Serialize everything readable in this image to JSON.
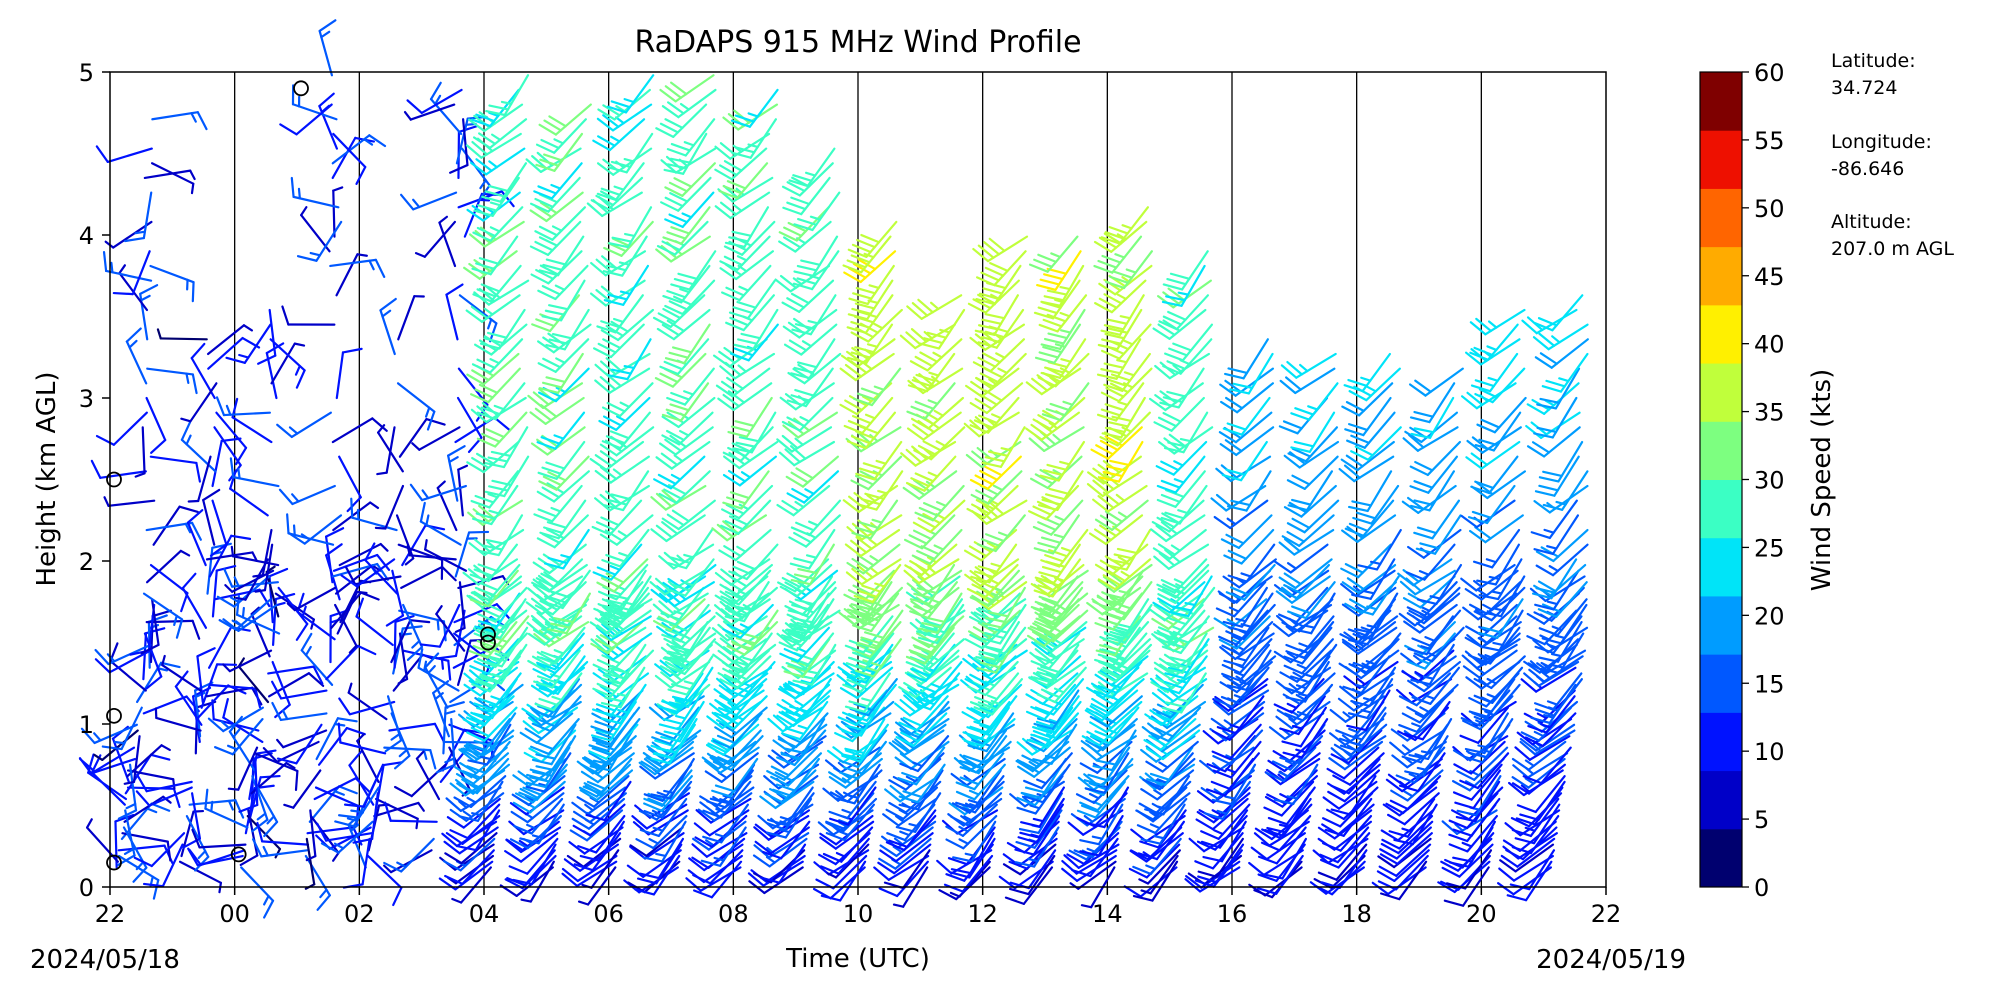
{
  "chart_data": {
    "type": "wind_barbs",
    "title": "RaDAPS 915 MHz Wind Profile",
    "xlabel": "Time (UTC)",
    "ylabel": "Height (km AGL)",
    "x_ticks": [
      "22",
      "00",
      "02",
      "04",
      "06",
      "08",
      "10",
      "12",
      "14",
      "16",
      "18",
      "20",
      "22"
    ],
    "x_start_date": "2024/05/18",
    "x_end_date": "2024/05/19",
    "y_ticks": [
      "0",
      "1",
      "2",
      "3",
      "4",
      "5"
    ],
    "ylim": [
      0,
      5
    ],
    "colorbar": {
      "label": "Wind Speed (kts)",
      "ticks": [
        "0",
        "5",
        "10",
        "15",
        "20",
        "25",
        "30",
        "35",
        "40",
        "45",
        "50",
        "55",
        "60"
      ],
      "range": [
        0,
        60
      ],
      "colors": [
        "#00006f",
        "#0000c8",
        "#0012ff",
        "#0058ff",
        "#009cff",
        "#00e4f8",
        "#3bffc4",
        "#7dff80",
        "#c0ff3b",
        "#fff000",
        "#ffab00",
        "#ff6500",
        "#ee1000",
        "#7f0000"
      ]
    },
    "station_info": {
      "latitude_label": "Latitude:",
      "latitude_value": "34.724",
      "longitude_label": "Longitude:",
      "longitude_value": "-86.646",
      "altitude_label": "Altitude:",
      "altitude_value": "207.0 m AGL"
    },
    "profiles": [
      {
        "hour": "22",
        "top_km": 5.0,
        "calm_heights_km": [
          2.5,
          1.05,
          0.15
        ]
      },
      {
        "hour": "23",
        "top_km": 3.5,
        "calm_heights_km": []
      },
      {
        "hour": "00",
        "top_km": 3.6,
        "calm_heights_km": [
          0.2
        ]
      },
      {
        "hour": "01",
        "top_km": 5.0,
        "calm_heights_km": [
          4.9
        ]
      },
      {
        "hour": "02",
        "top_km": 3.4,
        "calm_heights_km": []
      },
      {
        "hour": "03",
        "top_km": 4.9,
        "calm_heights_km": []
      },
      {
        "hour": "04",
        "top_km": 5.0,
        "calm_heights_km": [
          1.55,
          1.5
        ]
      },
      {
        "hour": "05",
        "top_km": 4.8,
        "calm_heights_km": []
      },
      {
        "hour": "06",
        "top_km": 5.0,
        "calm_heights_km": []
      },
      {
        "hour": "07",
        "top_km": 5.0,
        "calm_heights_km": []
      },
      {
        "hour": "08",
        "top_km": 4.9,
        "calm_heights_km": []
      },
      {
        "hour": "09",
        "top_km": 4.6,
        "calm_heights_km": []
      },
      {
        "hour": "10",
        "top_km": 4.1,
        "calm_heights_km": []
      },
      {
        "hour": "11",
        "top_km": 3.7,
        "calm_heights_km": []
      },
      {
        "hour": "12",
        "top_km": 4.05,
        "calm_heights_km": []
      },
      {
        "hour": "13",
        "top_km": 4.05,
        "calm_heights_km": []
      },
      {
        "hour": "14",
        "top_km": 4.2,
        "calm_heights_km": []
      },
      {
        "hour": "15",
        "top_km": 3.9,
        "calm_heights_km": []
      },
      {
        "hour": "16",
        "top_km": 3.4,
        "calm_heights_km": []
      },
      {
        "hour": "17",
        "top_km": 3.35,
        "calm_heights_km": []
      },
      {
        "hour": "18",
        "top_km": 3.35,
        "calm_heights_km": []
      },
      {
        "hour": "19",
        "top_km": 3.25,
        "calm_heights_km": []
      },
      {
        "hour": "20",
        "top_km": 3.6,
        "calm_heights_km": []
      },
      {
        "hour": "21",
        "top_km": 3.7,
        "calm_heights_km": []
      }
    ]
  }
}
